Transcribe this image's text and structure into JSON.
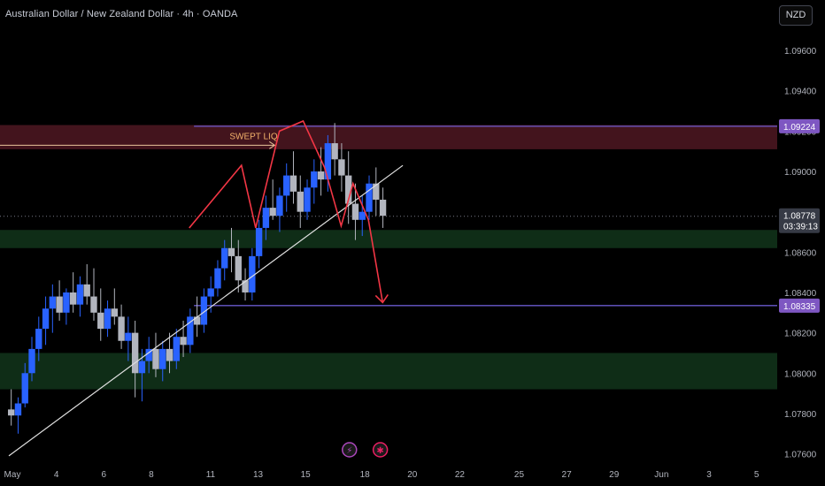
{
  "header": {
    "symbol_title": "Australian Dollar / New Zealand Dollar · 4h · OANDA",
    "currency": "NZD"
  },
  "colors": {
    "background": "#000000",
    "up_candle": "#2962ff",
    "down_candle": "#b2b5be",
    "supply_zone": "#4a1620",
    "demand_zone": "#11321a",
    "level_line": "#6a5acd",
    "price_tag": "#7e57c2",
    "current_tag": "#363a45",
    "trendline": "#e0e0e0",
    "pattern": "#f23645"
  },
  "chart_data": {
    "type": "candlestick",
    "y_axis": {
      "ticks": [
        "1.09600",
        "1.09400",
        "1.09200",
        "1.09000",
        "1.08600",
        "1.08400",
        "1.08200",
        "1.08000",
        "1.07800",
        "1.07600"
      ],
      "ylim": [
        1.0755,
        1.0985
      ]
    },
    "x_axis": {
      "ticks": [
        {
          "label": "May",
          "x": 0
        },
        {
          "label": "4",
          "x": 4
        },
        {
          "label": "6",
          "x": 8
        },
        {
          "label": "8",
          "x": 12
        },
        {
          "label": "11",
          "x": 17
        },
        {
          "label": "13",
          "x": 21
        },
        {
          "label": "15",
          "x": 25
        },
        {
          "label": "18",
          "x": 30
        },
        {
          "label": "20",
          "x": 34
        },
        {
          "label": "22",
          "x": 38
        },
        {
          "label": "25",
          "x": 43
        },
        {
          "label": "27",
          "x": 47
        },
        {
          "label": "29",
          "x": 51
        },
        {
          "label": "Jun",
          "x": 55
        },
        {
          "label": "3",
          "x": 59
        },
        {
          "label": "5",
          "x": 63
        }
      ],
      "xlim": [
        0,
        64
      ]
    },
    "candles_ohlc": [
      [
        1.0782,
        1.0792,
        1.0774,
        1.0779
      ],
      [
        1.0779,
        1.0788,
        1.077,
        1.0785
      ],
      [
        1.0785,
        1.0805,
        1.0783,
        1.08
      ],
      [
        1.08,
        1.0818,
        1.0796,
        1.0812
      ],
      [
        1.0812,
        1.0828,
        1.0806,
        1.0822
      ],
      [
        1.0822,
        1.0838,
        1.0814,
        1.0832
      ],
      [
        1.0832,
        1.0844,
        1.082,
        1.0838
      ],
      [
        1.0838,
        1.0846,
        1.0826,
        1.083
      ],
      [
        1.083,
        1.0842,
        1.0824,
        1.084
      ],
      [
        1.084,
        1.085,
        1.083,
        1.0834
      ],
      [
        1.0834,
        1.0848,
        1.0828,
        1.0844
      ],
      [
        1.0844,
        1.0854,
        1.0834,
        1.0838
      ],
      [
        1.0838,
        1.0852,
        1.0826,
        1.083
      ],
      [
        1.083,
        1.0842,
        1.0816,
        1.0822
      ],
      [
        1.0822,
        1.0836,
        1.0818,
        1.0832
      ],
      [
        1.0832,
        1.0842,
        1.0824,
        1.0828
      ],
      [
        1.0828,
        1.0834,
        1.0812,
        1.0816
      ],
      [
        1.0816,
        1.0828,
        1.0806,
        1.082
      ],
      [
        1.082,
        1.0826,
        1.0788,
        1.08
      ],
      [
        1.08,
        1.0812,
        1.0786,
        1.0806
      ],
      [
        1.0806,
        1.0818,
        1.08,
        1.0812
      ],
      [
        1.0812,
        1.082,
        1.0798,
        1.0802
      ],
      [
        1.0802,
        1.0816,
        1.0796,
        1.0812
      ],
      [
        1.0812,
        1.082,
        1.08,
        1.0806
      ],
      [
        1.0806,
        1.0822,
        1.0802,
        1.0818
      ],
      [
        1.0818,
        1.0826,
        1.0808,
        1.0814
      ],
      [
        1.0814,
        1.0832,
        1.081,
        1.0828
      ],
      [
        1.0828,
        1.0838,
        1.0818,
        1.0824
      ],
      [
        1.0824,
        1.0842,
        1.082,
        1.0838
      ],
      [
        1.0838,
        1.0848,
        1.083,
        1.0842
      ],
      [
        1.0842,
        1.0856,
        1.0838,
        1.0852
      ],
      [
        1.0852,
        1.0866,
        1.0846,
        1.0862
      ],
      [
        1.0862,
        1.0872,
        1.085,
        1.0858
      ],
      [
        1.0858,
        1.0866,
        1.084,
        1.0846
      ],
      [
        1.0846,
        1.0852,
        1.0836,
        1.084
      ],
      [
        1.084,
        1.0862,
        1.0836,
        1.0858
      ],
      [
        1.0858,
        1.0876,
        1.0852,
        1.0872
      ],
      [
        1.0872,
        1.0888,
        1.0866,
        1.0882
      ],
      [
        1.0882,
        1.0896,
        1.0876,
        1.0878
      ],
      [
        1.0878,
        1.0892,
        1.087,
        1.0888
      ],
      [
        1.0888,
        1.0904,
        1.088,
        1.0898
      ],
      [
        1.0898,
        1.091,
        1.0884,
        1.089
      ],
      [
        1.089,
        1.0898,
        1.0872,
        1.088
      ],
      [
        1.088,
        1.0896,
        1.0876,
        1.0892
      ],
      [
        1.0892,
        1.0906,
        1.0884,
        1.09
      ],
      [
        1.09,
        1.0912,
        1.0888,
        1.0896
      ],
      [
        1.0896,
        1.0918,
        1.089,
        1.0914
      ],
      [
        1.0914,
        1.0924,
        1.0898,
        1.0906
      ],
      [
        1.0906,
        1.0914,
        1.089,
        1.0898
      ],
      [
        1.0898,
        1.091,
        1.0874,
        1.0884
      ],
      [
        1.0884,
        1.0894,
        1.0866,
        1.0876
      ],
      [
        1.0876,
        1.0888,
        1.0868,
        1.088
      ],
      [
        1.088,
        1.0898,
        1.0876,
        1.0894
      ],
      [
        1.0894,
        1.0902,
        1.0878,
        1.0886
      ],
      [
        1.0886,
        1.0892,
        1.0872,
        1.0878
      ]
    ],
    "levels": [
      {
        "price": 1.09224,
        "label": "1.09224"
      },
      {
        "price": 1.08335,
        "label": "1.08335"
      }
    ],
    "current_price": {
      "price": 1.08778,
      "label": "1.08778",
      "countdown": "03:39:13"
    },
    "zones": [
      {
        "type": "supply",
        "from": 1.0911,
        "to": 1.0923
      },
      {
        "type": "demand",
        "from": 1.0862,
        "to": 1.0871
      },
      {
        "type": "demand",
        "from": 1.0792,
        "to": 1.081
      }
    ],
    "annotations": [
      {
        "text": "SWEPT LIQ",
        "price": 1.0913
      }
    ],
    "trendline": {
      "from": [
        0,
        1.0759
      ],
      "to": [
        33.2,
        1.0903
      ]
    },
    "pattern_path": [
      [
        15.2,
        1.0872
      ],
      [
        19.6,
        1.0903
      ],
      [
        20.8,
        1.0872
      ],
      [
        22.8,
        1.092
      ],
      [
        24.8,
        1.0925
      ],
      [
        26.6,
        1.0902
      ],
      [
        28.0,
        1.0873
      ],
      [
        29.0,
        1.0894
      ],
      [
        30.3,
        1.0876
      ],
      [
        31.5,
        1.0835
      ]
    ],
    "event_icons": [
      {
        "symbol": "⚡",
        "x": 28.7,
        "color": "#ab47bc"
      },
      {
        "symbol": "✱",
        "x": 31.3,
        "color": "#e91e63"
      }
    ]
  }
}
